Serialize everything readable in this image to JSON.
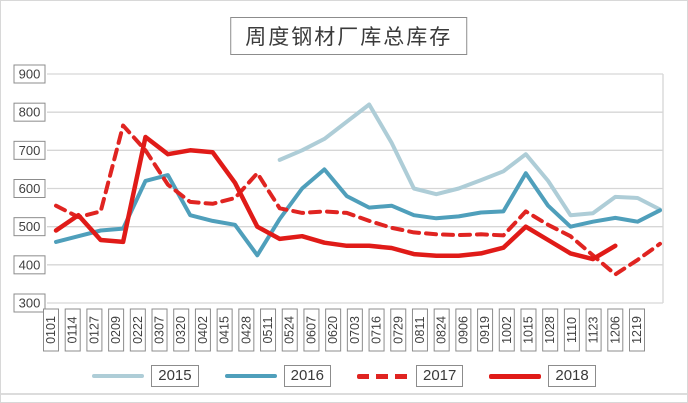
{
  "title": "周度钢材厂库总库存",
  "legend": [
    {
      "label": "2015",
      "color": "#aecdd7",
      "style": "solid",
      "thickness": 4
    },
    {
      "label": "2016",
      "color": "#4f9fbb",
      "style": "solid",
      "thickness": 4
    },
    {
      "label": "2017",
      "color": "#e02421",
      "style": "dashed",
      "thickness": 5
    },
    {
      "label": "2018",
      "color": "#e01b18",
      "style": "solid",
      "thickness": 5
    }
  ],
  "axis": {
    "yticks": [
      900,
      800,
      700,
      600,
      500,
      400,
      300
    ],
    "grid_color": "#d6d6d6",
    "label_text_color": "#404040",
    "label_box_border_color": "#8c8c8c"
  },
  "chart_data": {
    "type": "line",
    "title": "周度钢材厂库总库存",
    "xlabel": "",
    "ylabel": "",
    "ylim": [
      300,
      900
    ],
    "ytick_step": 100,
    "grid": "horizontal",
    "legend_position": "bottom",
    "categories": [
      "0101",
      "0114",
      "0127",
      "0209",
      "0222",
      "0307",
      "0320",
      "0402",
      "0415",
      "0428",
      "0511",
      "0524",
      "0607",
      "0620",
      "0703",
      "0716",
      "0729",
      "0811",
      "0824",
      "0906",
      "0919",
      "1002",
      "1015",
      "1028",
      "1110",
      "1123",
      "1206",
      "1219"
    ],
    "series": [
      {
        "name": "2015",
        "color": "#aecdd7",
        "dash": null,
        "stroke_width": 4,
        "values": [
          null,
          null,
          null,
          null,
          null,
          null,
          null,
          null,
          null,
          null,
          675,
          700,
          730,
          775,
          820,
          720,
          600,
          585,
          600,
          622,
          645,
          690,
          620,
          530,
          535,
          578,
          575,
          545
        ]
      },
      {
        "name": "2016",
        "color": "#4f9fbb",
        "dash": null,
        "stroke_width": 4,
        "values": [
          460,
          475,
          490,
          495,
          620,
          635,
          530,
          515,
          505,
          425,
          520,
          600,
          650,
          580,
          550,
          555,
          530,
          522,
          527,
          537,
          540,
          640,
          555,
          500,
          513,
          523,
          513,
          543
        ]
      },
      {
        "name": "2017",
        "color": "#e02421",
        "dash": "10 7",
        "stroke_width": 4,
        "values": [
          555,
          525,
          540,
          765,
          700,
          610,
          565,
          560,
          575,
          640,
          548,
          536,
          540,
          536,
          515,
          497,
          485,
          480,
          478,
          480,
          477,
          540,
          505,
          475,
          425,
          375,
          413,
          455
        ]
      },
      {
        "name": "2018",
        "color": "#e01b18",
        "dash": null,
        "stroke_width": 4.5,
        "values": [
          490,
          530,
          465,
          460,
          735,
          690,
          700,
          695,
          615,
          500,
          468,
          475,
          458,
          450,
          450,
          444,
          428,
          424,
          424,
          430,
          445,
          500,
          465,
          430,
          415,
          450,
          null,
          null
        ]
      }
    ]
  }
}
